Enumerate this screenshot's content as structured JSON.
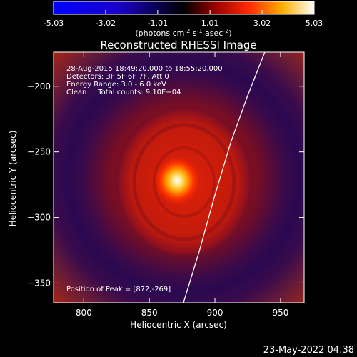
{
  "colorbar": {
    "ticks": [
      "-5.03",
      "-3.02",
      "-1.01",
      "1.01",
      "3.02",
      "5.03"
    ],
    "unit_parts": [
      "(photons cm",
      "-2",
      " s",
      "-1",
      " asec",
      "-2",
      ")"
    ]
  },
  "title": "Reconstructed RHESSI Image",
  "info_lines": [
    "28-Aug-2015 18:49:20.000 to 18:55:20.000",
    "Detectors: 3F 5F 6F 7F, Att 0",
    "Energy Range: 3.0 - 6.0 keV",
    "Clean     Total counts: 9.10E+04"
  ],
  "peak_text": "Position of Peak = [872,-269]",
  "timestamp": "23-May-2022 04:38",
  "chart_data": {
    "type": "heatmap",
    "title": "Reconstructed RHESSI Image",
    "xlabel": "Heliocentric X (arcsec)",
    "ylabel": "Heliocentric Y (arcsec)",
    "xlim": [
      777,
      968
    ],
    "ylim": [
      -365,
      -174
    ],
    "xticks": [
      800,
      850,
      900,
      950
    ],
    "yticks": [
      -200,
      -250,
      -300,
      -350
    ],
    "peak": [
      872,
      -269
    ],
    "colorbar_range": [
      -5.03,
      5.03
    ],
    "limb_curve": [
      [
        938,
        -174
      ],
      [
        925,
        -207
      ],
      [
        912,
        -243
      ],
      [
        900,
        -283
      ],
      [
        888,
        -326
      ],
      [
        876,
        -365
      ]
    ]
  }
}
